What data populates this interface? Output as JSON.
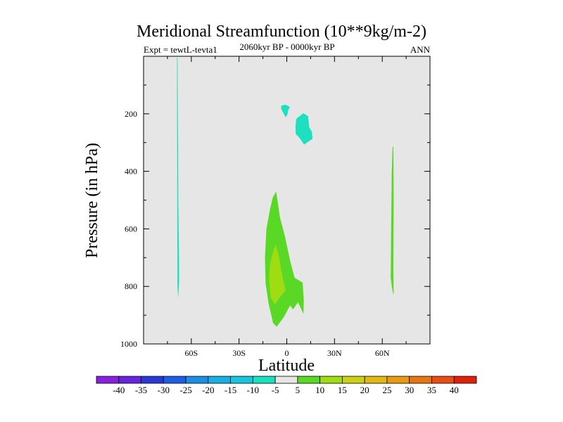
{
  "chart_data": {
    "type": "contour",
    "title": "Meridional Streamfunction (10**9kg/m-2)",
    "subtitle": "2060kyr BP - 0000kyr BP",
    "left_label": "Expt = tewtL-tevta1",
    "right_label": "ANN",
    "xlabel": "Latitude",
    "ylabel": "Pressure (in hPa)",
    "xlim": [
      -90,
      90
    ],
    "ylim": [
      0,
      1000
    ],
    "y_inverted": true,
    "x_ticks": [
      {
        "value": -60,
        "label": "60S"
      },
      {
        "value": -30,
        "label": "30S"
      },
      {
        "value": 0,
        "label": "0"
      },
      {
        "value": 30,
        "label": "30N"
      },
      {
        "value": 60,
        "label": "60N"
      }
    ],
    "y_ticks": [
      {
        "value": 200,
        "label": "200"
      },
      {
        "value": 400,
        "label": "400"
      },
      {
        "value": 600,
        "label": "600"
      },
      {
        "value": 800,
        "label": "800"
      },
      {
        "value": 1000,
        "label": "1000"
      }
    ],
    "background_color": "#e6e6e6",
    "regions": [
      {
        "name": "sh-polar-cell-negative",
        "level": "-10 to -5",
        "color": "#1de0c0",
        "points": [
          [
            -69.0,
            5
          ],
          [
            -68.6,
            5
          ],
          [
            -68.5,
            150
          ],
          [
            -68.3,
            300
          ],
          [
            -68.2,
            500
          ],
          [
            -67.7,
            700
          ],
          [
            -67.6,
            780
          ],
          [
            -68.0,
            820
          ],
          [
            -68.3,
            840
          ],
          [
            -68.7,
            800
          ],
          [
            -68.8,
            600
          ],
          [
            -68.9,
            300
          ],
          [
            -69.0,
            150
          ]
        ]
      },
      {
        "name": "upper-cell-negative-small",
        "level": "-10 to -5",
        "color": "#1de0c0",
        "points": [
          [
            -3.5,
            172
          ],
          [
            -0.7,
            168
          ],
          [
            2.1,
            177
          ],
          [
            0.9,
            187
          ],
          [
            0.4,
            203
          ],
          [
            -0.7,
            212
          ],
          [
            -2.1,
            198
          ],
          [
            -3.5,
            183
          ]
        ]
      },
      {
        "name": "upper-cell-negative-large",
        "level": "-10 to -5",
        "color": "#1de0c0",
        "points": [
          [
            6.0,
            217
          ],
          [
            10.4,
            198
          ],
          [
            13.4,
            208
          ],
          [
            14.1,
            247
          ],
          [
            15.8,
            262
          ],
          [
            16.2,
            287
          ],
          [
            10.9,
            307
          ],
          [
            8.1,
            284
          ],
          [
            5.6,
            270
          ],
          [
            5.5,
            244
          ]
        ]
      },
      {
        "name": "tropical-cell-positive",
        "level": "5 to 10",
        "color": "#5ad826",
        "points": [
          [
            -6.7,
            470
          ],
          [
            -4.3,
            560
          ],
          [
            -1.4,
            620
          ],
          [
            2.3,
            715
          ],
          [
            4.9,
            770
          ],
          [
            10.0,
            787
          ],
          [
            10.7,
            850
          ],
          [
            10.5,
            895
          ],
          [
            7.0,
            855
          ],
          [
            4.0,
            880
          ],
          [
            2.1,
            866
          ],
          [
            -1.7,
            905
          ],
          [
            -6.3,
            940
          ],
          [
            -8.6,
            928
          ],
          [
            -11.4,
            860
          ],
          [
            -13.3,
            790
          ],
          [
            -13.7,
            700
          ],
          [
            -12.8,
            600
          ],
          [
            -10.5,
            530
          ],
          [
            -8.7,
            490
          ]
        ]
      },
      {
        "name": "tropical-cell-positive-core",
        "level": "10 to 15",
        "color": "#a0dc12",
        "points": [
          [
            -6.9,
            655
          ],
          [
            -5.1,
            690
          ],
          [
            -3.5,
            745
          ],
          [
            -0.7,
            815
          ],
          [
            -3.3,
            830
          ],
          [
            -7.5,
            862
          ],
          [
            -10.1,
            840
          ],
          [
            -11.2,
            770
          ],
          [
            -10.5,
            720
          ],
          [
            -8.4,
            675
          ]
        ]
      },
      {
        "name": "nh-polar-cell-positive",
        "level": "5 to 10",
        "color": "#5ad826",
        "points": [
          [
            66.5,
            315
          ],
          [
            67.0,
            315
          ],
          [
            67.2,
            500
          ],
          [
            67.0,
            750
          ],
          [
            67.2,
            820
          ],
          [
            67.0,
            830
          ],
          [
            66.0,
            800
          ],
          [
            65.3,
            770
          ],
          [
            65.6,
            600
          ],
          [
            66.0,
            400
          ]
        ]
      }
    ],
    "colorbar": {
      "labels": [
        "-40",
        "-35",
        "-30",
        "-25",
        "-20",
        "-15",
        "-10",
        "-5",
        "5",
        "10",
        "15",
        "20",
        "25",
        "30",
        "35",
        "40"
      ],
      "colors": [
        "#8a1fe0",
        "#6624dd",
        "#2a38d8",
        "#1a5fe4",
        "#1b8ee6",
        "#19aee6",
        "#17c5dc",
        "#19e0bf",
        "#e6e6e6",
        "#5ad826",
        "#a0dc12",
        "#cbd112",
        "#e2b912",
        "#e89a12",
        "#e87412",
        "#e84e12",
        "#e02008"
      ]
    }
  }
}
